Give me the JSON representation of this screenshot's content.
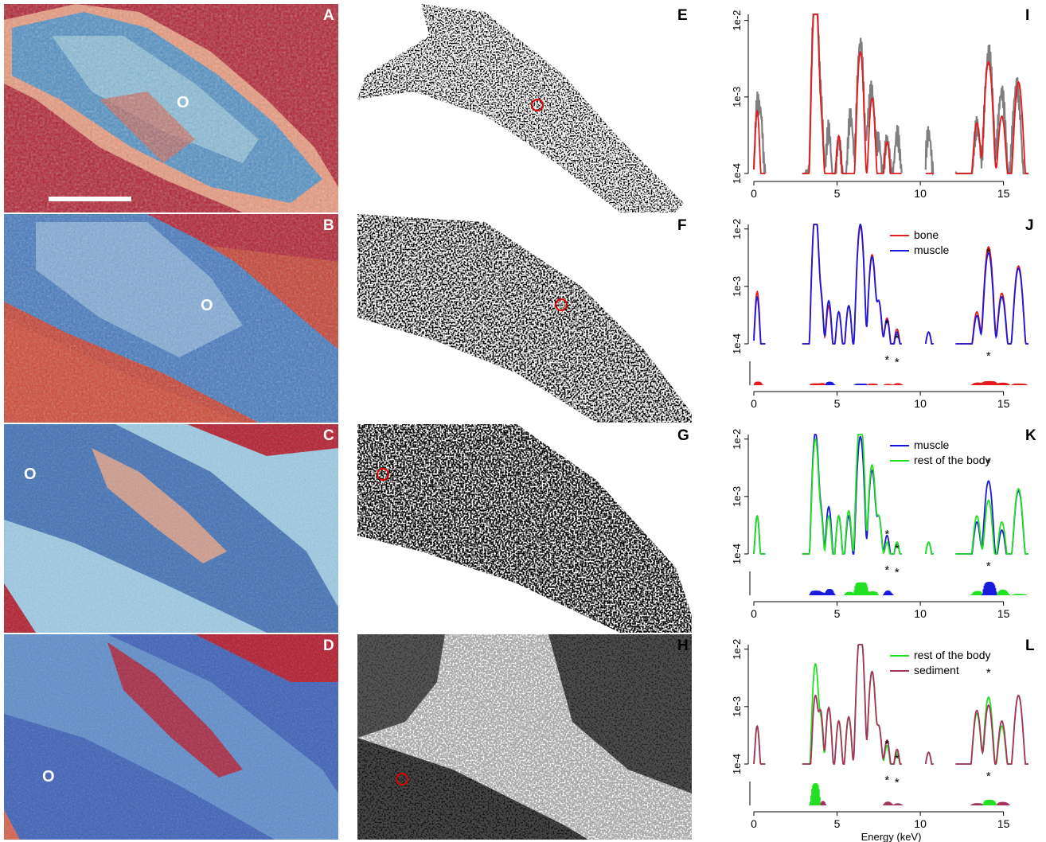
{
  "panels": {
    "A": {
      "label": "A"
    },
    "B": {
      "label": "B"
    },
    "C": {
      "label": "C"
    },
    "D": {
      "label": "D"
    },
    "E": {
      "label": "E"
    },
    "F": {
      "label": "F"
    },
    "G": {
      "label": "G"
    },
    "H": {
      "label": "H"
    },
    "I": {
      "label": "I"
    },
    "J": {
      "label": "J"
    },
    "K": {
      "label": "K"
    },
    "L": {
      "label": "L"
    }
  },
  "map_marker": "O",
  "colors": {
    "bone": "#e41a1c",
    "muscle": "#1a1adc",
    "rest": "#22e022",
    "sediment": "#a8325e",
    "raw": "#7f7f7f",
    "fit": "#e41a1c"
  },
  "chart_data": [
    {
      "id": "I",
      "type": "line",
      "ylog": true,
      "yticks": [
        "1e-4",
        "1e-3",
        "1e-2"
      ],
      "xticks": [
        "0",
        "5",
        "10",
        "15"
      ],
      "xlim": [
        0,
        16.5
      ],
      "ylim": [
        0.0001,
        0.012
      ],
      "series": [
        {
          "role": "raw",
          "color": "#7f7f7f",
          "peaks": [
            [
              0.2,
              0.0006
            ],
            [
              0.4,
              0.0004
            ],
            [
              3.7,
              0.022
            ],
            [
              4.0,
              0.0008
            ],
            [
              4.5,
              0.0004
            ],
            [
              5.1,
              0.0003
            ],
            [
              5.8,
              0.0004
            ],
            [
              6.4,
              0.0036
            ],
            [
              6.9,
              0.0003
            ],
            [
              7.1,
              0.0012
            ],
            [
              7.5,
              0.0003
            ],
            [
              8.0,
              0.0003
            ],
            [
              8.6,
              0.0002
            ],
            [
              10.5,
              0.0004
            ],
            [
              13.4,
              0.0005
            ],
            [
              14.1,
              0.003
            ],
            [
              14.9,
              0.0008
            ],
            [
              15.8,
              0.0018
            ]
          ]
        },
        {
          "role": "fit",
          "color": "#e41a1c",
          "peaks": [
            [
              0.2,
              0.0006
            ],
            [
              3.7,
              0.023
            ],
            [
              4.0,
              0.0006
            ],
            [
              5.1,
              0.00025
            ],
            [
              6.4,
              0.0038
            ],
            [
              7.1,
              0.0009
            ],
            [
              8.0,
              0.0002
            ],
            [
              13.4,
              0.0004
            ],
            [
              14.1,
              0.0028
            ],
            [
              14.9,
              0.0005
            ],
            [
              15.9,
              0.0015
            ]
          ]
        }
      ]
    },
    {
      "id": "J",
      "type": "line",
      "ylog": true,
      "yticks": [
        "1e-4",
        "1e-3",
        "1e-2"
      ],
      "xticks": [
        "0",
        "5",
        "10",
        "15"
      ],
      "xlim": [
        0,
        16.5
      ],
      "ylim": [
        0.0001,
        0.012
      ],
      "series": [
        {
          "name": "bone",
          "color": "#e41a1c",
          "peaks": [
            [
              0.2,
              0.00075
            ],
            [
              3.7,
              0.021
            ],
            [
              4.0,
              0.0008
            ],
            [
              4.5,
              0.0004
            ],
            [
              5.1,
              0.0003
            ],
            [
              5.7,
              0.0004
            ],
            [
              6.4,
              0.011
            ],
            [
              7.1,
              0.0035
            ],
            [
              7.5,
              0.0005
            ],
            [
              8.0,
              0.00022
            ],
            [
              8.6,
              0.00012
            ],
            [
              10.5,
              0.0001
            ],
            [
              13.4,
              0.0003
            ],
            [
              14.1,
              0.0048
            ],
            [
              14.9,
              0.0007
            ],
            [
              15.9,
              0.0022
            ]
          ]
        },
        {
          "name": "muscle",
          "color": "#1a1adc",
          "peaks": [
            [
              0.2,
              0.0006
            ],
            [
              3.7,
              0.019
            ],
            [
              4.0,
              0.0007
            ],
            [
              4.5,
              0.0005
            ],
            [
              5.1,
              0.0003
            ],
            [
              5.7,
              0.0004
            ],
            [
              6.4,
              0.012
            ],
            [
              7.1,
              0.0032
            ],
            [
              7.5,
              0.0005
            ],
            [
              8.0,
              0.0002
            ],
            [
              8.6,
              0.0001
            ],
            [
              10.5,
              0.0001
            ],
            [
              13.4,
              0.00025
            ],
            [
              14.1,
              0.0038
            ],
            [
              14.9,
              0.0006
            ],
            [
              15.9,
              0.002
            ]
          ]
        }
      ],
      "legend": [
        "bone",
        "muscle"
      ],
      "annotations": [
        "*",
        "*",
        "*",
        "*",
        "*",
        "*"
      ]
    },
    {
      "id": "K",
      "type": "line",
      "ylog": true,
      "yticks": [
        "1e-4",
        "1e-3",
        "1e-2"
      ],
      "xticks": [
        "0",
        "5",
        "10",
        "15"
      ],
      "xlim": [
        0,
        16.5
      ],
      "ylim": [
        0.0001,
        0.012
      ],
      "series": [
        {
          "name": "muscle",
          "color": "#1a1adc",
          "peaks": [
            [
              0.2,
              0.0004
            ],
            [
              3.7,
              0.013
            ],
            [
              4.0,
              0.0006
            ],
            [
              4.5,
              0.0006
            ],
            [
              5.1,
              0.0004
            ],
            [
              5.7,
              0.0004
            ],
            [
              6.4,
              0.011
            ],
            [
              7.1,
              0.0028
            ],
            [
              7.5,
              0.0004
            ],
            [
              8.0,
              0.00015
            ],
            [
              8.6,
              0.0001
            ],
            [
              10.5,
              0.0001
            ],
            [
              13.4,
              0.0003
            ],
            [
              14.1,
              0.0018
            ],
            [
              14.9,
              0.0002
            ],
            [
              15.9,
              0.0012
            ]
          ]
        },
        {
          "name": "rest of the body",
          "color": "#22e022",
          "peaks": [
            [
              0.2,
              0.0004
            ],
            [
              3.7,
              0.01
            ],
            [
              4.0,
              0.0005
            ],
            [
              4.5,
              0.0004
            ],
            [
              5.1,
              0.0004
            ],
            [
              5.7,
              0.0005
            ],
            [
              6.4,
              0.023
            ],
            [
              7.1,
              0.0035
            ],
            [
              7.5,
              0.0004
            ],
            [
              8.0,
              0.0001
            ],
            [
              8.6,
              0.0001
            ],
            [
              10.5,
              0.0001
            ],
            [
              13.4,
              0.0004
            ],
            [
              14.1,
              0.0008
            ],
            [
              14.9,
              0.0003
            ],
            [
              15.9,
              0.0013
            ]
          ]
        }
      ],
      "legend": [
        "muscle",
        "rest of the body"
      ],
      "annotations": [
        "*",
        "*",
        "*",
        "*",
        "*",
        "*"
      ]
    },
    {
      "id": "L",
      "type": "line",
      "ylog": true,
      "yticks": [
        "1e-4",
        "1e-3",
        "1e-2"
      ],
      "xticks": [
        "0",
        "5",
        "10",
        "15"
      ],
      "xlabel": "Energy (keV)",
      "xlim": [
        0,
        16.5
      ],
      "ylim": [
        0.0001,
        0.012
      ],
      "series": [
        {
          "name": "rest of the body",
          "color": "#22e022",
          "peaks": [
            [
              0.2,
              0.0004
            ],
            [
              3.7,
              0.0055
            ],
            [
              4.0,
              0.0006
            ],
            [
              4.5,
              0.0009
            ],
            [
              5.1,
              0.0005
            ],
            [
              5.7,
              0.0006
            ],
            [
              6.4,
              0.022
            ],
            [
              7.1,
              0.004
            ],
            [
              7.5,
              0.0004
            ],
            [
              8.0,
              0.00015
            ],
            [
              8.6,
              0.0001
            ],
            [
              10.5,
              0.0001
            ],
            [
              13.4,
              0.0007
            ],
            [
              14.1,
              0.0014
            ],
            [
              14.9,
              0.0004
            ],
            [
              15.9,
              0.0015
            ]
          ]
        },
        {
          "name": "sediment",
          "color": "#a8325e",
          "peaks": [
            [
              0.2,
              0.0004
            ],
            [
              3.7,
              0.0015
            ],
            [
              4.0,
              0.0008
            ],
            [
              4.5,
              0.0009
            ],
            [
              5.1,
              0.0005
            ],
            [
              5.7,
              0.0006
            ],
            [
              6.4,
              0.022
            ],
            [
              7.1,
              0.004
            ],
            [
              7.5,
              0.0004
            ],
            [
              8.0,
              0.0002
            ],
            [
              8.6,
              0.00012
            ],
            [
              10.5,
              0.0001
            ],
            [
              13.4,
              0.0008
            ],
            [
              14.1,
              0.001
            ],
            [
              14.9,
              0.0005
            ],
            [
              15.9,
              0.0015
            ]
          ]
        }
      ],
      "legend": [
        "rest of the body",
        "sediment"
      ],
      "annotations": [
        "*",
        "*",
        "*",
        "*",
        "*",
        "*"
      ]
    }
  ]
}
